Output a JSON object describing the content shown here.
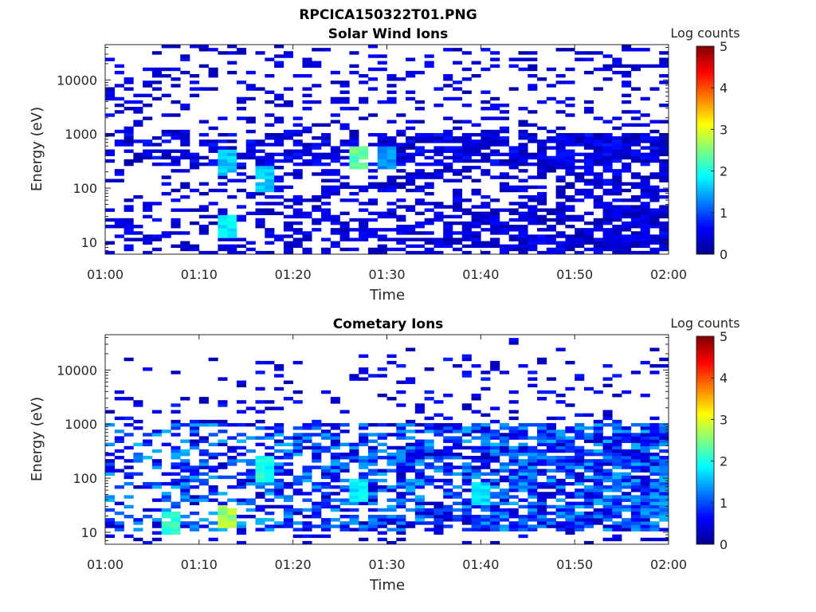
{
  "figure": {
    "title": "RPCICA150322T01.PNG"
  },
  "colorbar": {
    "label": "Log counts",
    "ticks": [
      "0",
      "1",
      "2",
      "3",
      "4",
      "5"
    ],
    "range": [
      0,
      5
    ],
    "colormap": "jet"
  },
  "chart_data": [
    {
      "type": "heatmap",
      "title": "Solar Wind Ions",
      "xlabel": "Time",
      "ylabel": "Energy (eV)",
      "x_ticks": [
        "01:00",
        "01:10",
        "01:20",
        "01:30",
        "01:40",
        "01:50",
        "02:00"
      ],
      "x_range": [
        "01:00",
        "02:00"
      ],
      "y_scale": "log",
      "y_range": [
        6,
        45000
      ],
      "y_ticks": [
        "10",
        "100",
        "1000",
        "10000"
      ],
      "z_range": [
        0,
        5
      ],
      "z_label": "Log counts",
      "notable_features": [
        {
          "time": "01:13",
          "energy_eV": 20,
          "log_counts": 2.0
        },
        {
          "time": "01:13",
          "energy_eV": 300,
          "log_counts": 1.8
        },
        {
          "time": "01:17",
          "energy_eV": 150,
          "log_counts": 1.8
        },
        {
          "time": "01:27",
          "energy_eV": 350,
          "log_counts": 2.6
        },
        {
          "time": "01:30",
          "energy_eV": 350,
          "log_counts": 1.5
        }
      ],
      "background": {
        "energy_band_eV": [
          250,
          1000
        ],
        "log_counts": 0.6
      }
    },
    {
      "type": "heatmap",
      "title": "Cometary Ions",
      "xlabel": "Time",
      "ylabel": "Energy (eV)",
      "x_ticks": [
        "01:00",
        "01:10",
        "01:20",
        "01:30",
        "01:40",
        "01:50",
        "02:00"
      ],
      "x_range": [
        "01:00",
        "02:00"
      ],
      "y_scale": "log",
      "y_range": [
        6,
        45000
      ],
      "y_ticks": [
        "10",
        "100",
        "1000",
        "10000"
      ],
      "z_range": [
        0,
        5
      ],
      "z_label": "Log counts",
      "notable_features": [
        {
          "time": "01:13",
          "energy_eV": 20,
          "log_counts": 3.0
        },
        {
          "time": "01:07",
          "energy_eV": 15,
          "log_counts": 2.3
        },
        {
          "time": "01:17",
          "energy_eV": 150,
          "log_counts": 2.2
        },
        {
          "time": "01:27",
          "energy_eV": 60,
          "log_counts": 2.0
        },
        {
          "time": "01:40",
          "energy_eV": 50,
          "log_counts": 1.9
        }
      ],
      "background": {
        "energy_band_eV": [
          10,
          1000
        ],
        "log_counts": 1.2
      }
    }
  ]
}
